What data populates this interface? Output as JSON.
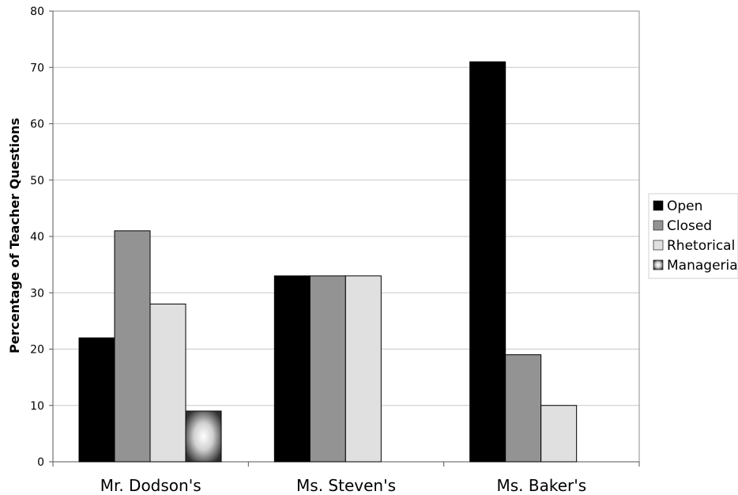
{
  "chart_data": {
    "type": "bar",
    "title": "",
    "xlabel": "",
    "ylabel": "Percentage of Teacher Questions",
    "ylim": [
      0,
      80
    ],
    "yticks": [
      0,
      10,
      20,
      30,
      40,
      50,
      60,
      70,
      80
    ],
    "grid": true,
    "legend_position": "right",
    "categories": [
      "Mr. Dodson's",
      "Ms. Steven's",
      "Ms. Baker's"
    ],
    "series": [
      {
        "name": "Open",
        "color": "#000000",
        "values": [
          22,
          33,
          71
        ]
      },
      {
        "name": "Closed",
        "color": "#939393",
        "values": [
          41,
          33,
          19
        ]
      },
      {
        "name": "Rhetorical",
        "color": "#e0e0e0",
        "values": [
          28,
          33,
          10
        ]
      },
      {
        "name": "Manageria",
        "color": "gradient",
        "values": [
          9,
          null,
          null
        ]
      }
    ]
  }
}
